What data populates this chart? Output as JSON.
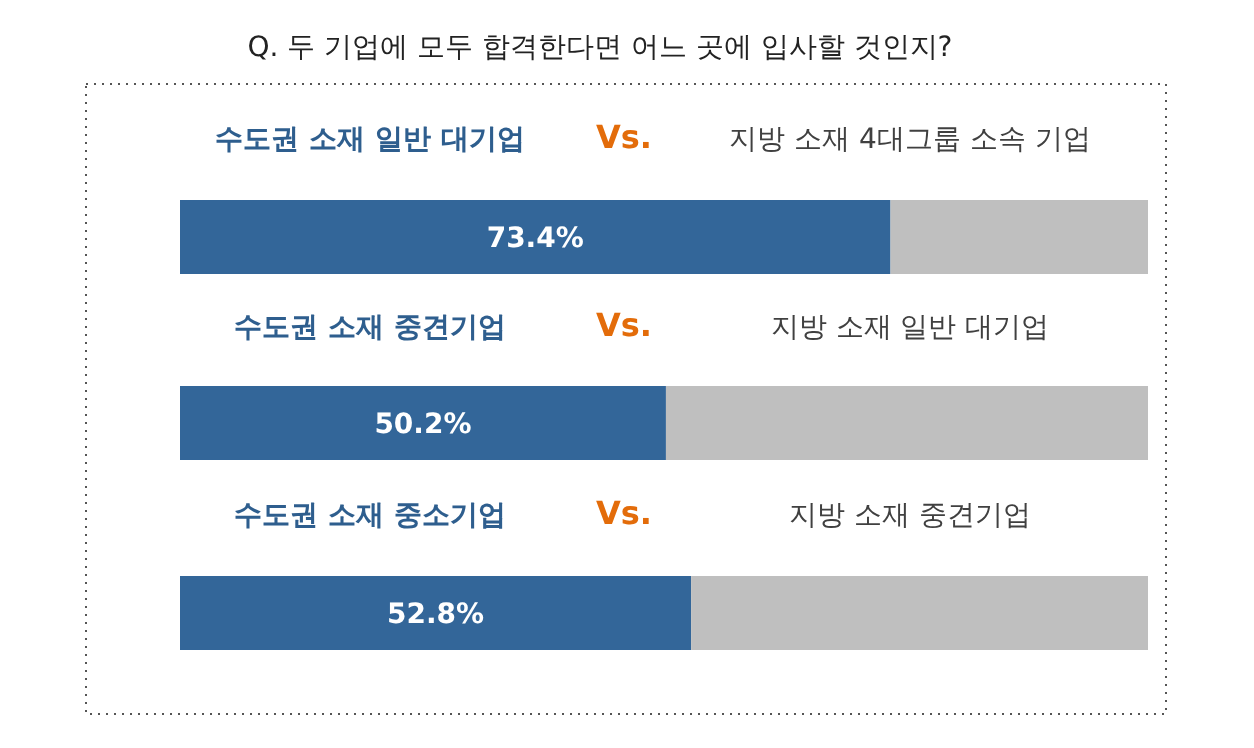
{
  "chart_data": {
    "type": "bar",
    "orientation": "horizontal",
    "stacked": true,
    "title": "Q. 두 기업에 모두 합격한다면 어느 곳에 입사할 것인지?",
    "categories": [
      "수도권 소재 일반 대기업",
      "수도권 소재 중견기업",
      "수도권 소재 중소기업"
    ],
    "xlim": [
      0,
      100
    ],
    "series": [
      {
        "color": "#336699",
        "values": [
          73.4,
          50.2,
          52.8
        ],
        "value_labels": [
          "73.4%",
          "50.2%",
          "52.8%"
        ]
      },
      {
        "color": "#bfbfbf",
        "values": [
          26.6,
          49.8,
          47.2
        ]
      }
    ],
    "annotations": [
      "Vs.",
      "지방 소재 4대그룹 소속 기업",
      "Vs.",
      "지방 소재 일반 대기업",
      "Vs.",
      "지방 소재 중견기업"
    ]
  }
}
